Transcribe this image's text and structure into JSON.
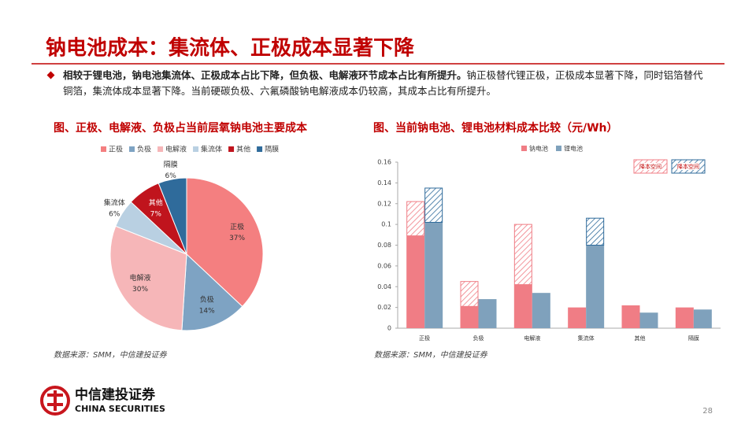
{
  "title": "钠电池成本：集流体、正极成本显著下降",
  "bullet": {
    "bold": "相较于锂电池，钠电池集流体、正极成本占比下降，但负极、电解液环节成本占比有所提升。",
    "text": "钠正极替代锂正极，正极成本显著下降，同时铝箔替代铜箔，集流体成本显著下降。当前硬碳负极、六氟磷酸钠电解液成本仍较高，其成本占比有所提升。"
  },
  "chart_data": [
    {
      "type": "pie",
      "title": "图、正极、电解液、负极占当前层氧钠电池主要成本",
      "categories": [
        "正极",
        "负极",
        "电解液",
        "集流体",
        "其他",
        "隔膜"
      ],
      "values": [
        37,
        14,
        30,
        6,
        7,
        6
      ],
      "value_labels": [
        "37%",
        "14%",
        "30%",
        "6%",
        "7%",
        "6%"
      ],
      "colors": [
        "#f47f80",
        "#7ea3c3",
        "#f6b6b8",
        "#b9d0e2",
        "#c0141d",
        "#2f6b9b"
      ]
    },
    {
      "type": "bar",
      "title": "图、当前钠电池、锂电池材料成本比较（元/Wh）",
      "categories": [
        "正极",
        "负极",
        "电解液",
        "集流体",
        "其他",
        "隔膜"
      ],
      "series": [
        {
          "name": "钠电池",
          "color": "#f07d85",
          "values": [
            0.089,
            0.021,
            0.042,
            0.02,
            0.022,
            0.02
          ]
        },
        {
          "name": "锂电池",
          "color": "#7fa1bc",
          "values": [
            0.102,
            0.028,
            0.034,
            0.08,
            0.015,
            0.018
          ]
        },
        {
          "name": "降本空间",
          "color": "#f07d85",
          "hatch": true,
          "values": [
            0.033,
            0.024,
            0.058,
            null,
            null,
            null
          ]
        },
        {
          "name": "降本空间",
          "color": "#2f6b9b",
          "hatch": true,
          "values": [
            0.033,
            null,
            null,
            0.026,
            null,
            null
          ]
        }
      ],
      "ylim": [
        0,
        0.16
      ],
      "yticks": [
        0,
        0.02,
        0.04,
        0.06,
        0.08,
        0.1,
        0.12,
        0.14,
        0.16
      ]
    }
  ],
  "sources": [
    "数据来源：SMM，中信建投证券",
    "数据来源：SMM，中信建投证券"
  ],
  "logo": {
    "name": "中信建投证券",
    "english": "CHINA SECURITIES"
  },
  "page_number": "28"
}
